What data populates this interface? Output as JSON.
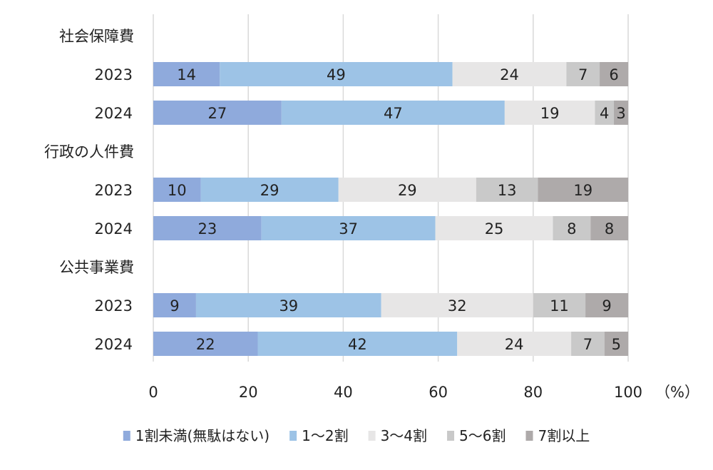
{
  "chart_data": {
    "type": "bar",
    "orientation": "horizontal",
    "stacked": true,
    "unit_label": "（%）",
    "xlim": [
      0,
      100
    ],
    "xticks": [
      "0",
      "20",
      "40",
      "60",
      "80",
      "100"
    ],
    "grid": true,
    "legend_position": "bottom",
    "groups": [
      {
        "label": "社会保障費",
        "rows": [
          {
            "label": "2023",
            "values": [
              14,
              49,
              24,
              7,
              6
            ]
          },
          {
            "label": "2024",
            "values": [
              27,
              47,
              19,
              4,
              3
            ]
          }
        ]
      },
      {
        "label": "行政の人件費",
        "rows": [
          {
            "label": "2023",
            "values": [
              10,
              29,
              29,
              13,
              19
            ]
          },
          {
            "label": "2024",
            "values": [
              23,
              37,
              25,
              8,
              8
            ]
          }
        ]
      },
      {
        "label": "公共事業費",
        "rows": [
          {
            "label": "2023",
            "values": [
              9,
              39,
              32,
              11,
              9
            ]
          },
          {
            "label": "2024",
            "values": [
              22,
              42,
              24,
              7,
              5
            ]
          }
        ]
      }
    ],
    "series": [
      {
        "name": "1割未満(無駄はない)",
        "color": "#8faadc"
      },
      {
        "name": "1～2割",
        "color": "#9dc3e6"
      },
      {
        "name": "3～4割",
        "color": "#e7e6e6"
      },
      {
        "name": "5～6割",
        "color": "#c9c9c9"
      },
      {
        "name": "7割以上",
        "color": "#aeaaaa"
      }
    ]
  }
}
